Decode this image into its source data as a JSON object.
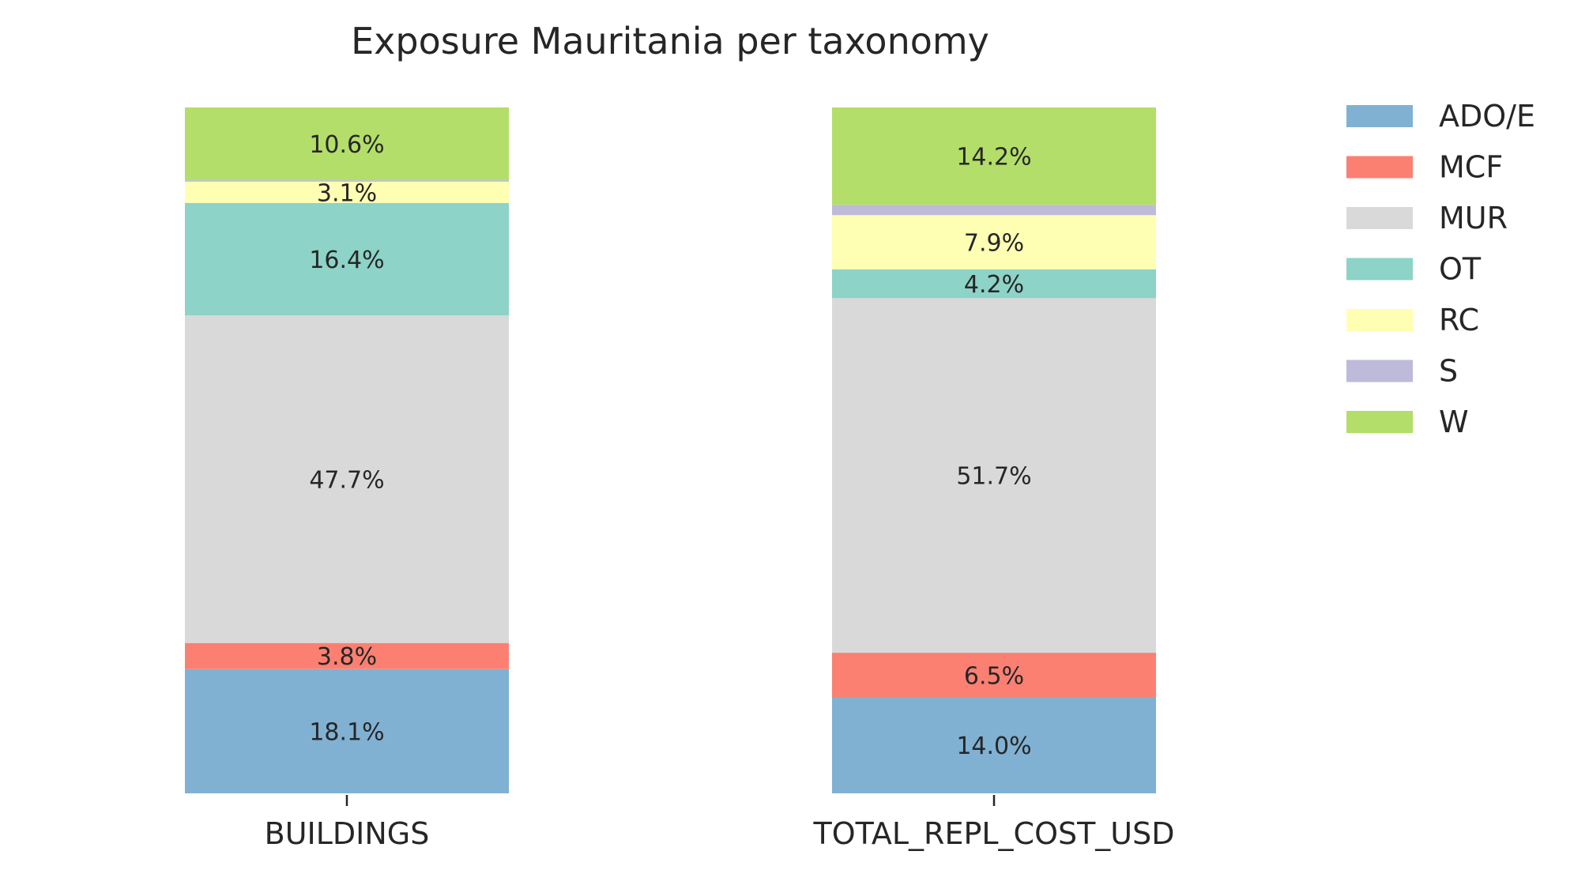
{
  "chart_data": {
    "type": "bar",
    "stacked": true,
    "title": "Exposure Mauritania per taxonomy",
    "xlabel": "",
    "ylabel": "",
    "categories": [
      "BUILDINGS",
      "TOTAL_REPL_COST_USD"
    ],
    "ylim": [
      0,
      100
    ],
    "grid": false,
    "legend_position": "right",
    "series": [
      {
        "name": "ADO/E",
        "color": "#80b1d3",
        "values": [
          18.1,
          14.0
        ],
        "labels": [
          "18.1%",
          "14.0%"
        ]
      },
      {
        "name": "MCF",
        "color": "#fb8072",
        "values": [
          3.8,
          6.5
        ],
        "labels": [
          "3.8%",
          "6.5%"
        ]
      },
      {
        "name": "MUR",
        "color": "#d9d9d9",
        "values": [
          47.7,
          51.7
        ],
        "labels": [
          "47.7%",
          "51.7%"
        ]
      },
      {
        "name": "OT",
        "color": "#8dd3c7",
        "values": [
          16.4,
          4.2
        ],
        "labels": [
          "16.4%",
          "4.2%"
        ]
      },
      {
        "name": "RC",
        "color": "#ffffb3",
        "values": [
          3.1,
          7.9
        ],
        "labels": [
          "3.1%",
          "7.9%"
        ]
      },
      {
        "name": "S",
        "color": "#bebada",
        "values": [
          0.2,
          1.5
        ],
        "labels": [
          "",
          ""
        ]
      },
      {
        "name": "W",
        "color": "#b3de69",
        "values": [
          10.6,
          14.2
        ],
        "labels": [
          "10.6%",
          "14.2%"
        ]
      }
    ]
  }
}
